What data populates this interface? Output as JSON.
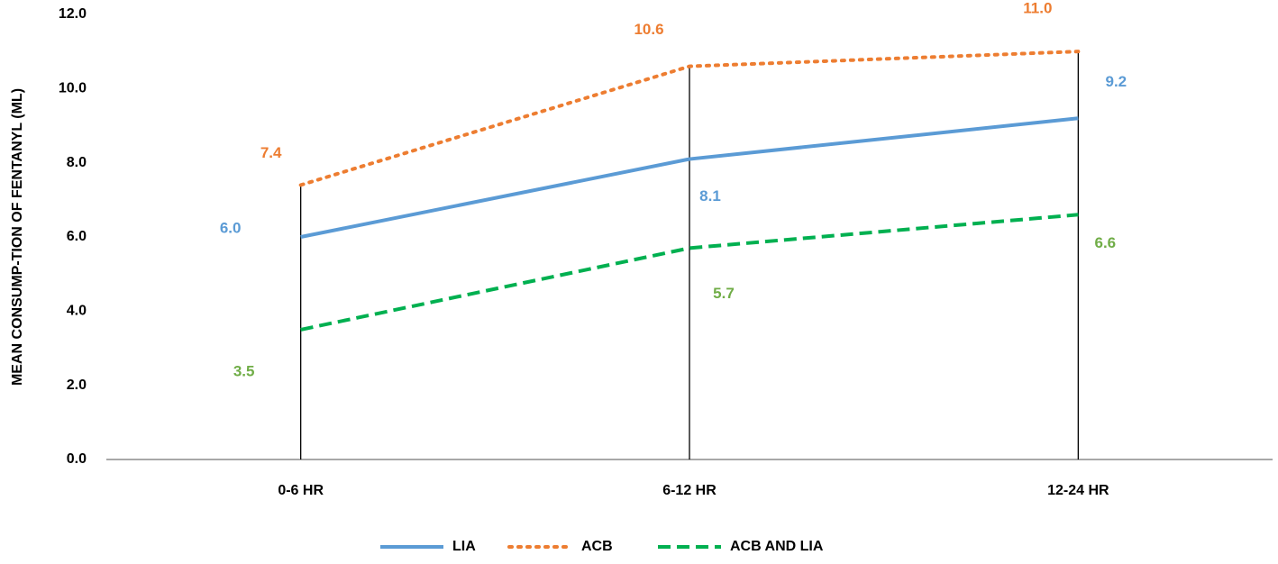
{
  "chart_data": {
    "type": "line",
    "y_label": "MEAN CONSUMP-TION OF FENTANYL (ML)",
    "categories": [
      "0-6 HR",
      "6-12 HR",
      "12-24 HR"
    ],
    "series": [
      {
        "name": "LIA",
        "color": "#5b9bd5",
        "label_color": "#5b9bd5",
        "dash": "solid",
        "values": [
          6.0,
          8.1,
          9.2
        ],
        "value_labels": [
          "6.0",
          "8.1",
          "9.2"
        ]
      },
      {
        "name": "ACB",
        "color": "#ed7d31",
        "label_color": "#ed7d31",
        "dash": "dotted",
        "values": [
          7.4,
          10.6,
          11.0
        ],
        "value_labels": [
          "7.4",
          "10.6",
          "11.0"
        ]
      },
      {
        "name": "ACB AND LIA",
        "color": "#00b050",
        "label_color": "#70ad47",
        "dash": "dashed",
        "values": [
          3.5,
          5.7,
          6.6
        ],
        "value_labels": [
          "3.5",
          "5.7",
          "6.6"
        ]
      }
    ],
    "ylim": [
      0,
      12
    ],
    "yticks": [
      {
        "value": 0,
        "label": "0.0"
      },
      {
        "value": 2,
        "label": "2.0"
      },
      {
        "value": 4,
        "label": "4.0"
      },
      {
        "value": 6,
        "label": "6.0"
      },
      {
        "value": 8,
        "label": "8.0"
      },
      {
        "value": 10,
        "label": "10.0"
      },
      {
        "value": 12,
        "label": "12.0"
      }
    ],
    "drop_lines": true,
    "grid": false,
    "legend": "bottom"
  }
}
